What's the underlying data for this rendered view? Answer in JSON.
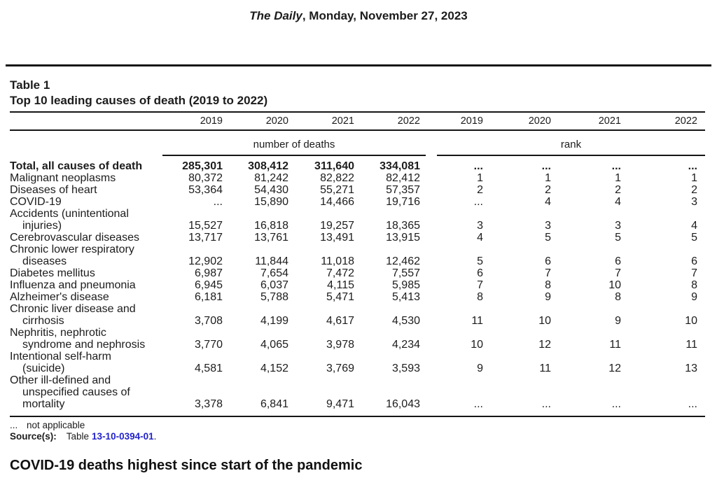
{
  "masthead": {
    "publication": "The Daily",
    "date_suffix": ", Monday, November 27, 2023"
  },
  "table": {
    "label": "Table 1",
    "title": "Top 10 leading causes of death (2019 to 2022)",
    "col_years": [
      "2019",
      "2020",
      "2021",
      "2022",
      "2019",
      "2020",
      "2021",
      "2022"
    ],
    "group_headers": [
      "number of deaths",
      "rank"
    ],
    "rows": [
      {
        "cause": "Total, all causes of death",
        "bold": true,
        "deaths": [
          "285,301",
          "308,412",
          "311,640",
          "334,081"
        ],
        "ranks": [
          "...",
          "...",
          "...",
          "..."
        ]
      },
      {
        "cause": "Malignant neoplasms",
        "deaths": [
          "80,372",
          "81,242",
          "82,822",
          "82,412"
        ],
        "ranks": [
          "1",
          "1",
          "1",
          "1"
        ]
      },
      {
        "cause": "Diseases of heart",
        "deaths": [
          "53,364",
          "54,430",
          "55,271",
          "57,357"
        ],
        "ranks": [
          "2",
          "2",
          "2",
          "2"
        ]
      },
      {
        "cause": "COVID-19",
        "deaths": [
          "...",
          "15,890",
          "14,466",
          "19,716"
        ],
        "ranks": [
          "...",
          "4",
          "4",
          "3"
        ]
      },
      {
        "cause": "Accidents (unintentional injuries)",
        "deaths": [
          "15,527",
          "16,818",
          "19,257",
          "18,365"
        ],
        "ranks": [
          "3",
          "3",
          "3",
          "4"
        ]
      },
      {
        "cause": "Cerebrovascular diseases",
        "deaths": [
          "13,717",
          "13,761",
          "13,491",
          "13,915"
        ],
        "ranks": [
          "4",
          "5",
          "5",
          "5"
        ]
      },
      {
        "cause": "Chronic lower respiratory diseases",
        "deaths": [
          "12,902",
          "11,844",
          "11,018",
          "12,462"
        ],
        "ranks": [
          "5",
          "6",
          "6",
          "6"
        ]
      },
      {
        "cause": "Diabetes mellitus",
        "deaths": [
          "6,987",
          "7,654",
          "7,472",
          "7,557"
        ],
        "ranks": [
          "6",
          "7",
          "7",
          "7"
        ]
      },
      {
        "cause": "Influenza and pneumonia",
        "deaths": [
          "6,945",
          "6,037",
          "4,115",
          "5,985"
        ],
        "ranks": [
          "7",
          "8",
          "10",
          "8"
        ]
      },
      {
        "cause": "Alzheimer's disease",
        "deaths": [
          "6,181",
          "5,788",
          "5,471",
          "5,413"
        ],
        "ranks": [
          "8",
          "9",
          "8",
          "9"
        ]
      },
      {
        "cause": "Chronic liver disease and cirrhosis",
        "deaths": [
          "3,708",
          "4,199",
          "4,617",
          "4,530"
        ],
        "ranks": [
          "11",
          "10",
          "9",
          "10"
        ]
      },
      {
        "cause": "Nephritis, nephrotic syndrome and nephrosis",
        "deaths": [
          "3,770",
          "4,065",
          "3,978",
          "4,234"
        ],
        "ranks": [
          "10",
          "12",
          "11",
          "11"
        ]
      },
      {
        "cause": "Intentional self-harm (suicide)",
        "deaths": [
          "4,581",
          "4,152",
          "3,769",
          "3,593"
        ],
        "ranks": [
          "9",
          "11",
          "12",
          "13"
        ]
      },
      {
        "cause": "Other ill-defined and unspecified causes of mortality",
        "deaths": [
          "3,378",
          "6,841",
          "9,471",
          "16,043"
        ],
        "ranks": [
          "...",
          "...",
          "...",
          "..."
        ]
      }
    ],
    "footnote_symbol": "...",
    "footnote_text": "not applicable",
    "source_label": "Source(s):",
    "source_prefix": "Table",
    "source_link": "13-10-0394-01",
    "source_period": "."
  },
  "headline": "COVID-19 deaths highest since start of the pandemic",
  "colors": {
    "text": "#1c1c1c",
    "rule": "#151515",
    "link": "#2222cc"
  }
}
